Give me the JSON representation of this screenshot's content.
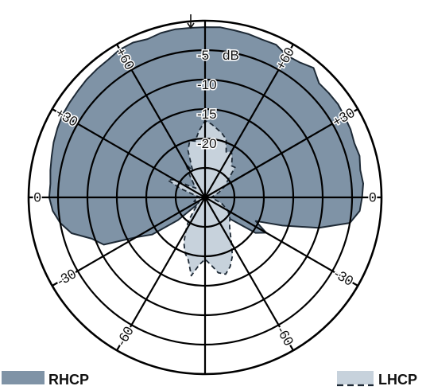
{
  "chart_data": {
    "type": "polar-area",
    "unit": "dB",
    "radial_ticks": [
      "-5",
      "-10",
      "-15",
      "-20"
    ],
    "radial_range": [
      -30,
      0
    ],
    "ring_levels": [
      -30,
      -25,
      -20,
      -15,
      -10,
      -5,
      0
    ],
    "angle_labels": [
      {
        "text": "0",
        "angle": -90
      },
      {
        "text": "0",
        "angle": 90
      },
      {
        "text": "+30",
        "angle": -60
      },
      {
        "text": "+60",
        "angle": -30
      },
      {
        "text": "+60",
        "angle": 30
      },
      {
        "text": "+30",
        "angle": 60
      },
      {
        "text": "-30",
        "angle": -120
      },
      {
        "text": "-60",
        "angle": -150
      },
      {
        "text": "-60",
        "angle": 150
      },
      {
        "text": "-30",
        "angle": 120
      }
    ],
    "spoke_angles": [
      0,
      30,
      60,
      90,
      120,
      150,
      180,
      210,
      240,
      270,
      300,
      330
    ],
    "series": [
      {
        "name": "RHCP",
        "color": "#7f93a6",
        "line": "solid",
        "points": [
          [
            -90,
            -3.5
          ],
          [
            -85,
            -3.6
          ],
          [
            -80,
            -3.3
          ],
          [
            -75,
            -3.0
          ],
          [
            -70,
            -2.6
          ],
          [
            -65,
            -2.3
          ],
          [
            -60,
            -2.0
          ],
          [
            -55,
            -1.9
          ],
          [
            -50,
            -1.8
          ],
          [
            -45,
            -1.6
          ],
          [
            -40,
            -1.5
          ],
          [
            -35,
            -1.4
          ],
          [
            -30,
            -1.0
          ],
          [
            -25,
            -1.0
          ],
          [
            -20,
            -1.4
          ],
          [
            -15,
            -1.1
          ],
          [
            -10,
            -1.0
          ],
          [
            -5,
            -1.1
          ],
          [
            0,
            -1.1
          ],
          [
            5,
            -1.0
          ],
          [
            10,
            -1.2
          ],
          [
            15,
            -1.3
          ],
          [
            20,
            -1.5
          ],
          [
            25,
            -1.4
          ],
          [
            30,
            -2.2
          ],
          [
            35,
            -2.0
          ],
          [
            40,
            -1.3
          ],
          [
            45,
            -2.6
          ],
          [
            50,
            -2.5
          ],
          [
            55,
            -2.4
          ],
          [
            60,
            -2.6
          ],
          [
            65,
            -2.7
          ],
          [
            70,
            -3.0
          ],
          [
            75,
            -2.8
          ],
          [
            80,
            -3.2
          ],
          [
            85,
            -3.0
          ],
          [
            90,
            -3.3
          ],
          [
            95,
            -3.6
          ],
          [
            100,
            -5.0
          ],
          [
            105,
            -10.0
          ],
          [
            110,
            -16.0
          ],
          [
            115,
            -20.5
          ],
          [
            120,
            -18.0
          ],
          [
            125,
            -19.5
          ],
          [
            130,
            -24.0
          ],
          [
            135,
            -26.0
          ],
          [
            140,
            -28.5
          ],
          [
            145,
            -29.0
          ],
          [
            150,
            -28.0
          ],
          [
            155,
            -25.5
          ],
          [
            160,
            -27.5
          ],
          [
            165,
            -29.5
          ],
          [
            170,
            -29.8
          ],
          [
            175,
            -29.9
          ],
          [
            180,
            -29.9
          ],
          [
            185,
            -29.8
          ],
          [
            190,
            -29.0
          ],
          [
            195,
            -28.5
          ],
          [
            200,
            -27.0
          ],
          [
            205,
            -25.5
          ],
          [
            210,
            -26.5
          ],
          [
            215,
            -28.0
          ],
          [
            220,
            -29.5
          ],
          [
            225,
            -29.0
          ],
          [
            230,
            -24.0
          ],
          [
            235,
            -19.0
          ],
          [
            240,
            -16.5
          ],
          [
            245,
            -11.0
          ],
          [
            250,
            -9.5
          ],
          [
            255,
            -6.5
          ],
          [
            260,
            -5.0
          ],
          [
            265,
            -4.0
          ],
          [
            270,
            -3.5
          ]
        ]
      },
      {
        "name": "LHCP",
        "color": "#c7d2dc",
        "line": "dashed",
        "points": [
          [
            -90,
            -29.3
          ],
          [
            -80,
            -28.5
          ],
          [
            -70,
            -25.5
          ],
          [
            -65,
            -23.0
          ],
          [
            -60,
            -24.0
          ],
          [
            -55,
            -26.5
          ],
          [
            -45,
            -27.8
          ],
          [
            -40,
            -27.0
          ],
          [
            -35,
            -25.5
          ],
          [
            -30,
            -23.5
          ],
          [
            -25,
            -25.0
          ],
          [
            -20,
            -21.5
          ],
          [
            -15,
            -20.0
          ],
          [
            -10,
            -20.3
          ],
          [
            -5,
            -18.6
          ],
          [
            0,
            -17.0
          ],
          [
            5,
            -17.5
          ],
          [
            10,
            -18.2
          ],
          [
            15,
            -18.8
          ],
          [
            20,
            -19.5
          ],
          [
            25,
            -21.5
          ],
          [
            30,
            -21.0
          ],
          [
            35,
            -22.0
          ],
          [
            40,
            -23.0
          ],
          [
            45,
            -22.8
          ],
          [
            50,
            -24.5
          ],
          [
            55,
            -25.5
          ],
          [
            60,
            -26.0
          ],
          [
            70,
            -27.5
          ],
          [
            80,
            -28.5
          ],
          [
            90,
            -29.0
          ],
          [
            100,
            -28.5
          ],
          [
            110,
            -27.0
          ],
          [
            120,
            -25.5
          ],
          [
            130,
            -24.5
          ],
          [
            140,
            -23.5
          ],
          [
            145,
            -22.5
          ],
          [
            150,
            -21.0
          ],
          [
            155,
            -19.0
          ],
          [
            160,
            -17.5
          ],
          [
            165,
            -16.5
          ],
          [
            170,
            -17.0
          ],
          [
            175,
            -18.5
          ],
          [
            180,
            -19.5
          ],
          [
            185,
            -18.5
          ],
          [
            190,
            -16.5
          ],
          [
            195,
            -19.0
          ],
          [
            200,
            -20.0
          ],
          [
            205,
            -21.5
          ],
          [
            210,
            -23.5
          ],
          [
            215,
            -25.0
          ],
          [
            220,
            -27.0
          ],
          [
            230,
            -28.5
          ],
          [
            240,
            -29.0
          ],
          [
            250,
            -28.0
          ],
          [
            260,
            -28.5
          ],
          [
            270,
            -29.3
          ]
        ]
      }
    ],
    "legend": [
      {
        "label": "RHCP",
        "swatch": "solid"
      },
      {
        "label": "LHCP",
        "swatch": "dashed"
      }
    ]
  }
}
